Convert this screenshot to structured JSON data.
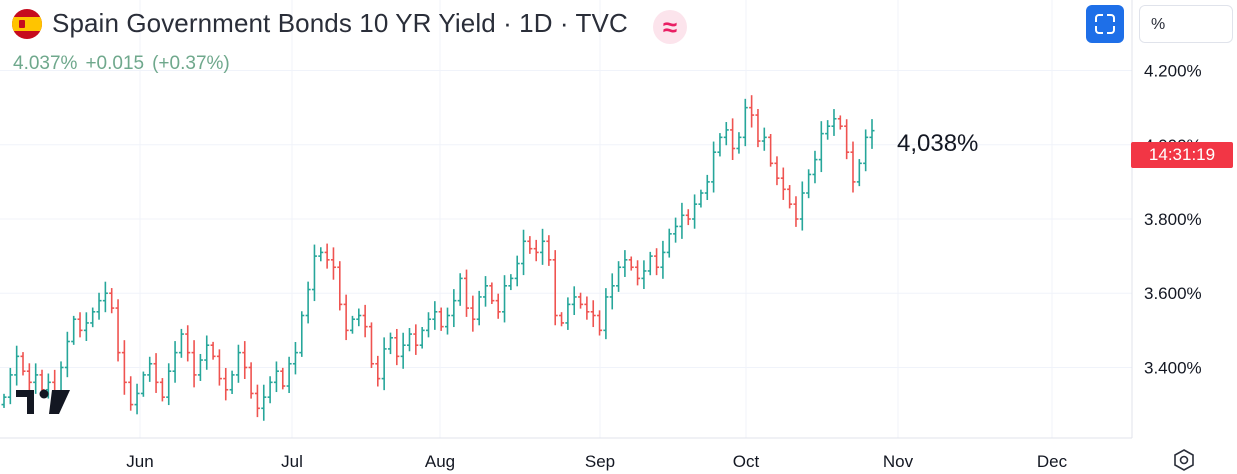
{
  "header": {
    "title": "Spain Government Bonds 10 YR Yield · 1D · TVC",
    "last": "4.037%",
    "change": "+0.015",
    "change_pct": "(+0.37%)"
  },
  "toolbar": {
    "percent_label": "%"
  },
  "annotation": "4,038%",
  "price_scale_label": "14:31:19",
  "colors": {
    "up": "#26a69a",
    "down": "#ef5350",
    "grid": "#f0f3fa",
    "axis_text": "#131722",
    "time_label": "#f23645",
    "accent": "#2962ff"
  },
  "icons": [
    "spain-flag-icon",
    "approx-icon",
    "fullscreen-icon",
    "tradingview-logo-icon",
    "settings-icon"
  ],
  "chart_data": {
    "type": "ohlc",
    "title": "Spain Government Bonds 10 YR Yield",
    "interval": "1D",
    "source": "TVC",
    "y_unit": "%",
    "y_ticks": [
      3.4,
      3.6,
      3.8,
      4.0,
      4.2
    ],
    "y_tick_labels": [
      "3.400%",
      "3.600%",
      "3.800%",
      "4.000%",
      "4.200%"
    ],
    "ylim": [
      3.21,
      4.39
    ],
    "x_months": [
      "Jun",
      "Jul",
      "Aug",
      "Sep",
      "Oct",
      "Nov",
      "Dec"
    ],
    "grid": true,
    "series_daily_close": [
      3.32,
      3.38,
      3.43,
      3.39,
      3.36,
      3.38,
      3.34,
      3.36,
      3.31,
      3.4,
      3.47,
      3.53,
      3.5,
      3.52,
      3.55,
      3.58,
      3.6,
      3.56,
      3.44,
      3.36,
      3.3,
      3.33,
      3.38,
      3.41,
      3.36,
      3.32,
      3.39,
      3.44,
      3.49,
      3.44,
      3.38,
      3.42,
      3.46,
      3.43,
      3.37,
      3.34,
      3.38,
      3.44,
      3.4,
      3.33,
      3.29,
      3.32,
      3.36,
      3.39,
      3.35,
      3.41,
      3.44,
      3.54,
      3.61,
      3.7,
      3.71,
      3.69,
      3.67,
      3.57,
      3.5,
      3.53,
      3.54,
      3.51,
      3.41,
      3.37,
      3.45,
      3.48,
      3.43,
      3.46,
      3.49,
      3.46,
      3.5,
      3.53,
      3.55,
      3.51,
      3.54,
      3.58,
      3.64,
      3.56,
      3.53,
      3.59,
      3.62,
      3.58,
      3.55,
      3.62,
      3.64,
      3.68,
      3.74,
      3.72,
      3.71,
      3.74,
      3.69,
      3.54,
      3.52,
      3.57,
      3.59,
      3.57,
      3.55,
      3.54,
      3.5,
      3.59,
      3.62,
      3.67,
      3.69,
      3.67,
      3.64,
      3.66,
      3.7,
      3.67,
      3.71,
      3.76,
      3.78,
      3.81,
      3.8,
      3.84,
      3.87,
      3.9,
      3.98,
      4.02,
      4.04,
      3.99,
      4.02,
      4.1,
      4.08,
      4.01,
      4.02,
      3.95,
      3.91,
      3.88,
      3.84,
      3.8,
      3.87,
      3.92,
      3.96,
      4.03,
      4.05,
      4.07,
      4.05,
      3.98,
      3.9,
      3.95,
      4.02,
      4.038
    ]
  }
}
